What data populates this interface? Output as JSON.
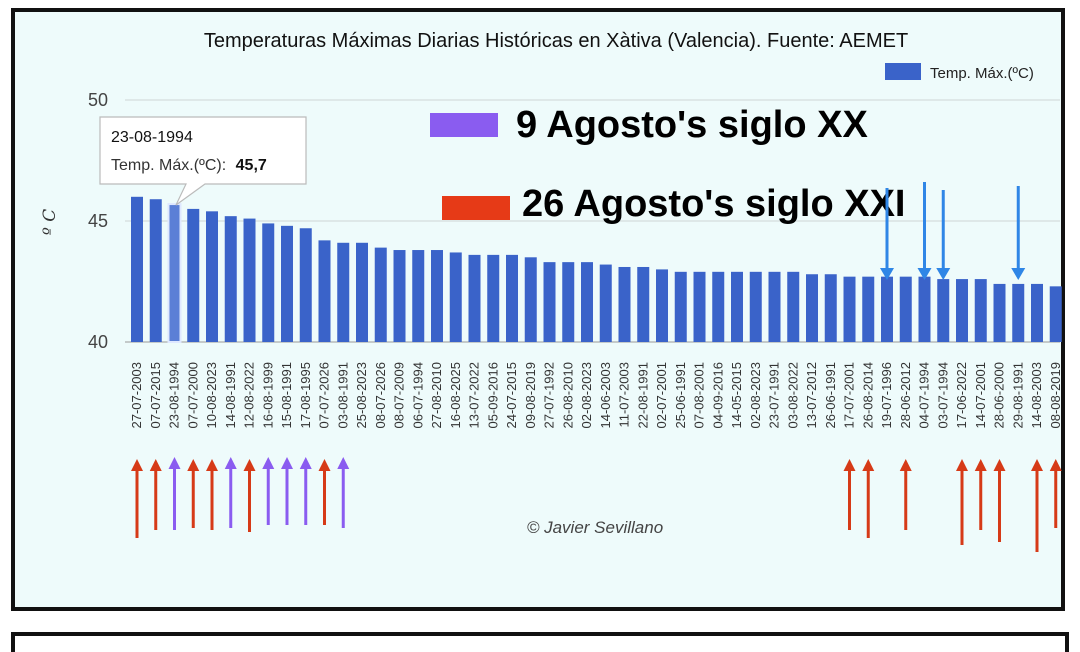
{
  "chart_data": {
    "type": "bar",
    "title": "Temperaturas Máximas Diarias Históricas en Xàtiva (Valencia). Fuente: AEMET",
    "ylabel": "º C",
    "xlabel": "",
    "ylim": [
      40,
      50
    ],
    "yticks": [
      "40",
      "45",
      "50"
    ],
    "grid": true,
    "legend_position": "top-right",
    "series": [
      {
        "name": "Temp. Máx.(ºC)",
        "color": "#3a63c9"
      }
    ],
    "categories": [
      "27-07-2003",
      "07-07-2015",
      "23-08-1994",
      "07-07-2000",
      "10-08-2023",
      "14-08-1991",
      "12-08-2022",
      "16-08-1999",
      "15-08-1991",
      "17-08-1995",
      "07-07-2026",
      "03-08-1991",
      "25-08-2023",
      "08-07-2026",
      "08-07-2009",
      "06-07-1994",
      "27-08-2010",
      "16-08-2025",
      "13-07-2022",
      "05-09-2016",
      "24-07-2015",
      "09-08-2019",
      "27-07-1992",
      "26-08-2010",
      "02-08-2023",
      "14-06-2003",
      "11-07-2003",
      "22-08-1991",
      "02-07-2001",
      "25-06-1991",
      "07-08-2001",
      "04-09-2016",
      "14-05-2015",
      "02-08-2023",
      "23-07-1991",
      "03-08-2022",
      "13-07-2012",
      "26-06-1991",
      "17-07-2001",
      "26-08-2014",
      "19-07-1996",
      "28-06-2012",
      "04-07-1994",
      "03-07-1994",
      "17-06-2022",
      "14-07-2001",
      "28-06-2000",
      "29-08-1991",
      "14-08-2003",
      "08-08-2019"
    ],
    "values": [
      46.0,
      45.9,
      45.7,
      45.5,
      45.4,
      45.2,
      45.1,
      44.9,
      44.8,
      44.7,
      44.2,
      44.1,
      44.1,
      43.9,
      43.8,
      43.8,
      43.8,
      43.7,
      43.6,
      43.6,
      43.6,
      43.5,
      43.3,
      43.3,
      43.3,
      43.2,
      43.1,
      43.1,
      43.0,
      42.9,
      42.9,
      42.9,
      42.9,
      42.9,
      42.9,
      42.9,
      42.8,
      42.8,
      42.7,
      42.7,
      42.7,
      42.7,
      42.7,
      42.6,
      42.6,
      42.6,
      42.4,
      42.4,
      42.4,
      42.3
    ],
    "highlight_index": 2,
    "tooltip": {
      "date": "23-08-1994",
      "label": "Temp. Máx.(ºC):",
      "value": "45,7"
    },
    "annotations": [
      {
        "text": "9 Agosto's siglo XX",
        "color": "#8a5cf0"
      },
      {
        "text": "26 Agosto's siglo XXI",
        "color": "#e63a17"
      }
    ],
    "credit": "© Javier Sevillano",
    "purple_arrow_indices": [
      2,
      5,
      7,
      8,
      9,
      11
    ],
    "red_arrow_indices": [
      0,
      1,
      3,
      4,
      6,
      10,
      38,
      39,
      41,
      44,
      45,
      46,
      48,
      49
    ],
    "blue_arrow_indices": [
      40,
      42,
      43,
      47
    ]
  }
}
